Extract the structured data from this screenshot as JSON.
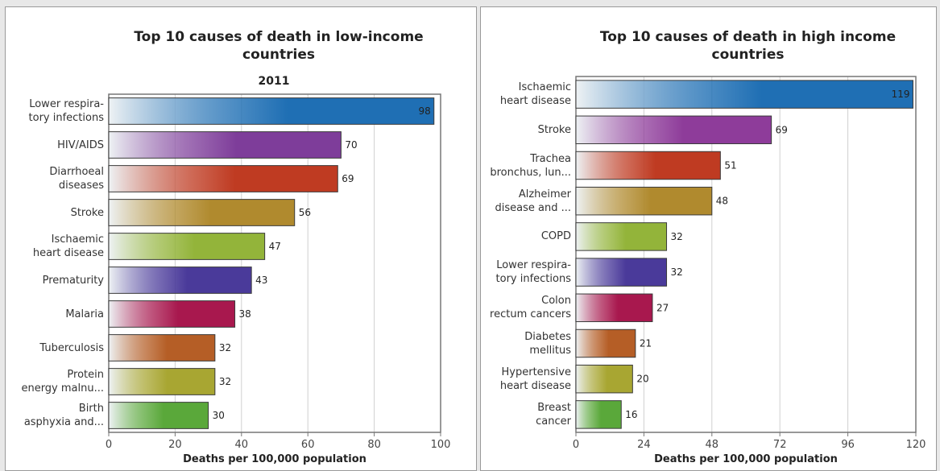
{
  "chart_data": [
    {
      "type": "bar",
      "orientation": "horizontal",
      "title": "Top 10 causes of death in low-income countries",
      "subtitle": "2011",
      "xlabel": "Deaths per 100,000 population",
      "ylabel": "",
      "xlim": [
        0,
        100
      ],
      "xticks": [
        "0",
        "20",
        "40",
        "60",
        "80",
        "100"
      ],
      "grid": true,
      "categories": [
        [
          "Lower respira-",
          "tory infections"
        ],
        [
          "HIV/AIDS"
        ],
        [
          "Diarrhoeal",
          "diseases"
        ],
        [
          "Stroke"
        ],
        [
          "Ischaemic",
          "heart disease"
        ],
        [
          "Prematurity"
        ],
        [
          "Malaria"
        ],
        [
          "Tuberculosis"
        ],
        [
          "Protein",
          "energy malnu..."
        ],
        [
          "Birth",
          "asphyxia and..."
        ]
      ],
      "values": [
        98,
        70,
        69,
        56,
        47,
        43,
        38,
        32,
        32,
        30
      ],
      "value_labels": [
        "98",
        "70",
        "69",
        "56",
        "47",
        "43",
        "38",
        "32",
        "32",
        "30"
      ],
      "colors": [
        "#1f6fb4",
        "#7e3d9a",
        "#bf3b22",
        "#b08a2e",
        "#93b43a",
        "#4a3a9a",
        "#a8184e",
        "#b55e26",
        "#a8a632",
        "#5aa83a"
      ]
    },
    {
      "type": "bar",
      "orientation": "horizontal",
      "title": "Top 10 causes of death in high income countries",
      "xlabel": "Deaths per 100,000 population",
      "ylabel": "",
      "xlim": [
        0,
        120
      ],
      "xticks": [
        "0",
        "24",
        "48",
        "72",
        "96",
        "120"
      ],
      "grid": true,
      "categories": [
        [
          "Ischaemic",
          "heart disease"
        ],
        [
          "Stroke"
        ],
        [
          "Trachea",
          "bronchus, lun..."
        ],
        [
          "Alzheimer",
          "disease and ..."
        ],
        [
          "COPD"
        ],
        [
          "Lower respira-",
          "tory infections"
        ],
        [
          "Colon",
          "rectum cancers"
        ],
        [
          "Diabetes",
          "mellitus"
        ],
        [
          "Hypertensive",
          "heart disease"
        ],
        [
          "Breast",
          "cancer"
        ]
      ],
      "values": [
        119,
        69,
        51,
        48,
        32,
        32,
        27,
        21,
        20,
        16
      ],
      "value_labels": [
        "119",
        "69",
        "51",
        "48",
        "32",
        "32",
        "27",
        "21",
        "20",
        "16"
      ],
      "colors": [
        "#1f6fb4",
        "#8e3c9a",
        "#bf3b22",
        "#b08a2e",
        "#93b43a",
        "#4a3a9a",
        "#a8184e",
        "#b55e26",
        "#a8a632",
        "#5aa83a"
      ]
    }
  ]
}
